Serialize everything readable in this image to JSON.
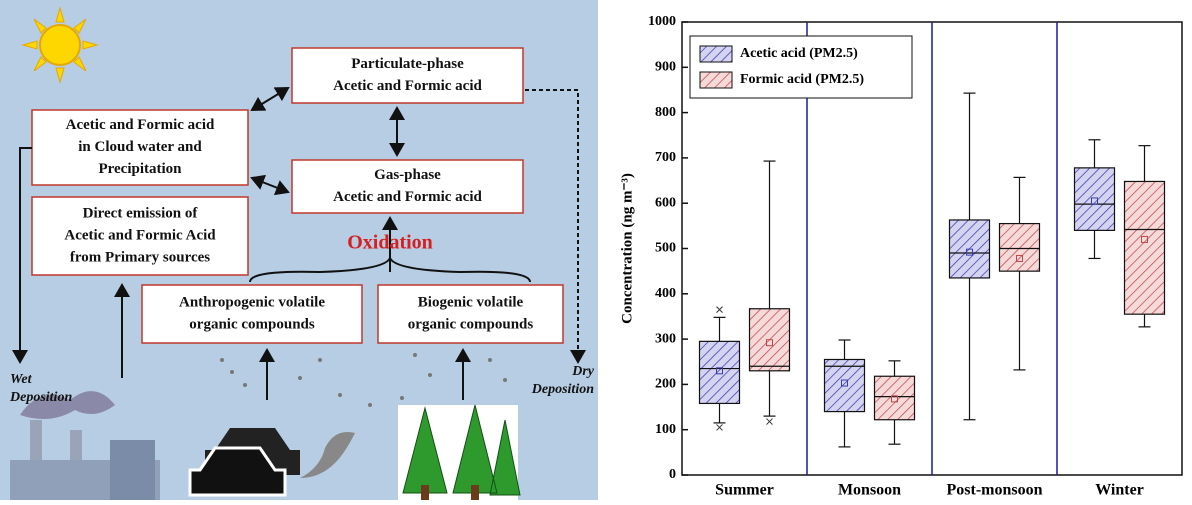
{
  "diagram": {
    "nodes": [
      {
        "lines": [
          "Particulate-phase",
          "Acetic and Formic acid"
        ]
      },
      {
        "lines": [
          "Acetic and Formic acid",
          "in Cloud water and",
          "Precipitation"
        ]
      },
      {
        "lines": [
          "Gas-phase",
          "Acetic and Formic acid"
        ]
      },
      {
        "lines": [
          "Direct emission of",
          "Acetic and Formic Acid",
          "from Primary sources"
        ]
      },
      {
        "lines": [
          "Anthropogenic volatile",
          "organic compounds"
        ]
      },
      {
        "lines": [
          "Biogenic volatile",
          "organic compounds"
        ]
      }
    ],
    "oxidation": "Oxidation",
    "wet_deposition": [
      "Wet",
      "Deposition"
    ],
    "dry_deposition": [
      "Dry",
      "Deposition"
    ]
  },
  "chart_data": {
    "type": "box",
    "ylabel": "Concentration (ng m⁻³)",
    "categories": [
      "Summer",
      "Monsoon",
      "Post-monsoon",
      "Winter"
    ],
    "ylim": [
      0,
      1000
    ],
    "yticks": [
      0,
      100,
      200,
      300,
      400,
      500,
      600,
      700,
      800,
      900,
      1000
    ],
    "legend": "upper left",
    "series": [
      {
        "name": "Acetic acid (PM2.5)",
        "color": "#3b3bb0",
        "fill": "#d4d4f0",
        "boxes": [
          {
            "min": 115,
            "q1": 158,
            "median": 235,
            "q3": 295,
            "max": 348,
            "mean": 230,
            "outliers": [
              365,
              105
            ]
          },
          {
            "min": 62,
            "q1": 140,
            "median": 240,
            "q3": 255,
            "max": 298,
            "mean": 203,
            "outliers": []
          },
          {
            "min": 122,
            "q1": 435,
            "median": 490,
            "q3": 563,
            "max": 843,
            "mean": 492,
            "outliers": []
          },
          {
            "min": 478,
            "q1": 540,
            "median": 598,
            "q3": 678,
            "max": 740,
            "mean": 605,
            "outliers": []
          }
        ]
      },
      {
        "name": "Formic acid (PM2.5)",
        "color": "#c04848",
        "fill": "#f6dada",
        "boxes": [
          {
            "min": 130,
            "q1": 230,
            "median": 240,
            "q3": 367,
            "max": 693,
            "mean": 292,
            "outliers": [
              118
            ]
          },
          {
            "min": 68,
            "q1": 122,
            "median": 173,
            "q3": 218,
            "max": 252,
            "mean": 168,
            "outliers": []
          },
          {
            "min": 232,
            "q1": 450,
            "median": 500,
            "q3": 555,
            "max": 657,
            "mean": 478,
            "outliers": []
          },
          {
            "min": 327,
            "q1": 355,
            "median": 542,
            "q3": 648,
            "max": 727,
            "mean": 520,
            "outliers": []
          }
        ]
      }
    ]
  }
}
